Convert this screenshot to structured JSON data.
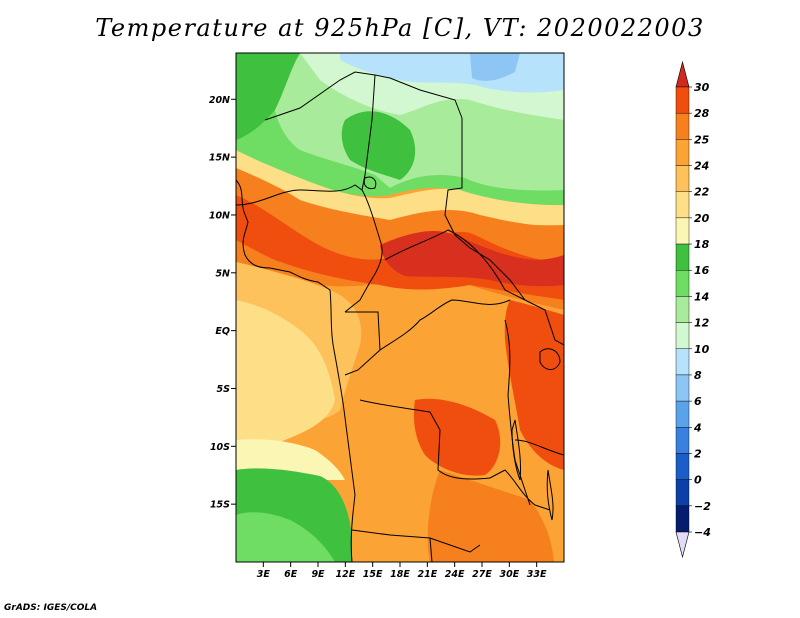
{
  "title": "Temperature at 925hPa [C], VT: 2020022003",
  "credit": "GrADS: IGES/COLA",
  "map": {
    "lon_range": [
      0,
      36
    ],
    "lat_range": [
      -20,
      24
    ],
    "lat_ticks": [
      {
        "value": 20,
        "label": "20N"
      },
      {
        "value": 15,
        "label": "15N"
      },
      {
        "value": 10,
        "label": "10N"
      },
      {
        "value": 5,
        "label": "5N"
      },
      {
        "value": 0,
        "label": "EQ"
      },
      {
        "value": -5,
        "label": "5S"
      },
      {
        "value": -10,
        "label": "10S"
      },
      {
        "value": -15,
        "label": "15S"
      }
    ],
    "lon_ticks": [
      {
        "value": 3,
        "label": "3E"
      },
      {
        "value": 6,
        "label": "6E"
      },
      {
        "value": 9,
        "label": "9E"
      },
      {
        "value": 12,
        "label": "12E"
      },
      {
        "value": 15,
        "label": "15E"
      },
      {
        "value": 18,
        "label": "18E"
      },
      {
        "value": 21,
        "label": "21E"
      },
      {
        "value": 24,
        "label": "24E"
      },
      {
        "value": 27,
        "label": "27E"
      },
      {
        "value": 30,
        "label": "30E"
      },
      {
        "value": 33,
        "label": "33E"
      }
    ]
  },
  "colorbar": {
    "levels": [
      {
        "label": "30",
        "color": "#d7301f"
      },
      {
        "label": "28",
        "color": "#f04e0f"
      },
      {
        "label": "25",
        "color": "#f7801e"
      },
      {
        "label": "24",
        "color": "#fca336"
      },
      {
        "label": "22",
        "color": "#fdc25c"
      },
      {
        "label": "20",
        "color": "#fddf88"
      },
      {
        "label": "18",
        "color": "#fcf6b4"
      },
      {
        "label": "16",
        "color": "#3fc13f"
      },
      {
        "label": "14",
        "color": "#6fdc63"
      },
      {
        "label": "12",
        "color": "#a8ec9b"
      },
      {
        "label": "10",
        "color": "#d3f7d0"
      },
      {
        "label": "8",
        "color": "#b6e2fc"
      },
      {
        "label": "6",
        "color": "#8dc6f5"
      },
      {
        "label": "4",
        "color": "#5aa2ea"
      },
      {
        "label": "2",
        "color": "#3a80de"
      },
      {
        "label": "0",
        "color": "#1c5ec8"
      },
      {
        "label": "−2",
        "color": "#0d40a6"
      },
      {
        "label": "−4",
        "color": "#061c6e"
      }
    ],
    "top_arrow_color": "#cf2a1d",
    "bottom_arrow_color": "#e3dcf6"
  },
  "field_colors": {
    "c30": "#d7301f",
    "c28": "#f04e0f",
    "c25": "#f7801e",
    "c24": "#fca336",
    "c22": "#fdc25c",
    "c20": "#fddf88",
    "c18": "#fcf6b4",
    "c16": "#3fc13f",
    "c14": "#6fdc63",
    "c12": "#a8ec9b",
    "c10": "#d3f7d0",
    "c8": "#b6e2fc",
    "c6": "#8dc6f5"
  }
}
